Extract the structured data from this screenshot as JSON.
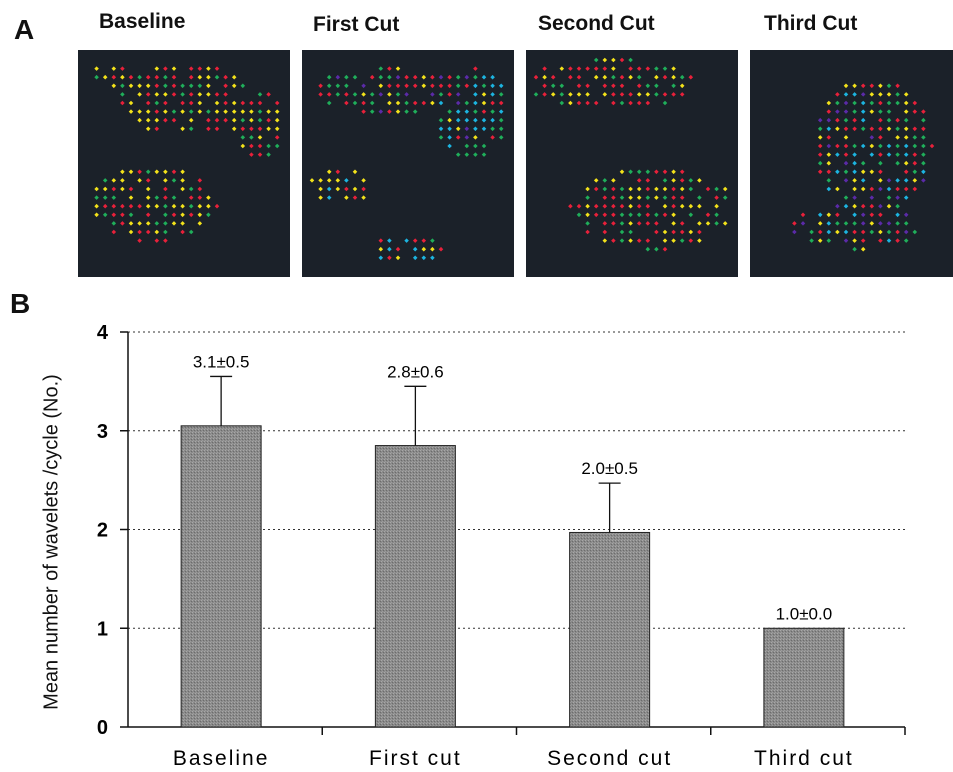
{
  "panel_a": {
    "label": "A",
    "maps": [
      {
        "title": "Baseline"
      },
      {
        "title": "First Cut"
      },
      {
        "title": "Second Cut"
      },
      {
        "title": "Third Cut"
      }
    ],
    "dot_colors": {
      "red": "#e8203a",
      "yellow": "#f3e21a",
      "green": "#1fae5a",
      "cyan": "#1cb4e0",
      "purple": "#5b2aa8"
    },
    "background_color": "#1b2129"
  },
  "panel_b": {
    "label": "B"
  },
  "chart_data": {
    "type": "bar",
    "categories": [
      "Baseline",
      "First cut",
      "Second cut",
      "Third cut"
    ],
    "values": [
      3.05,
      2.85,
      1.97,
      1.0
    ],
    "errors": [
      0.5,
      0.6,
      0.5,
      0.0
    ],
    "data_labels": [
      "3.1±0.5",
      "2.8±0.6",
      "2.0±0.5",
      "1.0±0.0"
    ],
    "ylabel": "Mean number of wavelets /cycle (No.)",
    "xlabel": "",
    "ylim": [
      0,
      4
    ],
    "yticks": [
      "0",
      "1",
      "2",
      "3",
      "4"
    ],
    "grid": "horizontal dotted",
    "bar_color": "#8a8a8a"
  }
}
